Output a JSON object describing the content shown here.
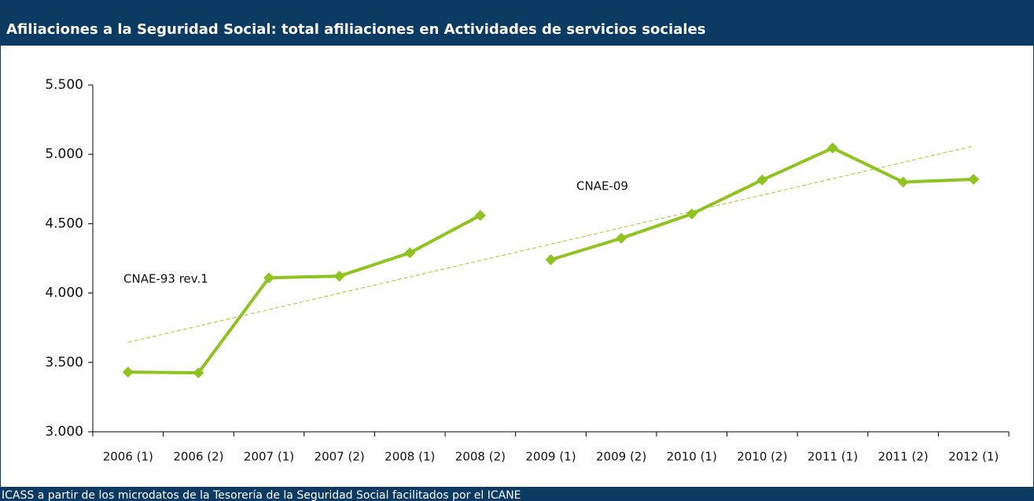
{
  "chart_data": {
    "type": "line",
    "title": "Afiliaciones a la Seguridad Social: total afiliaciones en Actividades de servicios sociales",
    "source": "ICASS a partir de los microdatos de la Tesorería de la Seguridad Social facilitados por el ICANE",
    "categories": [
      "2006 (1)",
      "2006 (2)",
      "2007 (1)",
      "2007 (2)",
      "2008 (1)",
      "2008 (2)",
      "2009 (1)",
      "2009 (2)",
      "2010 (1)",
      "2010 (2)",
      "2011 (1)",
      "2011 (2)",
      "2012 (1)"
    ],
    "series": [
      {
        "color": "#8fc31f",
        "values": [
          3430,
          3425,
          4110,
          4122,
          4290,
          4560,
          null,
          null,
          null,
          null,
          null,
          null,
          null
        ]
      },
      {
        "color": "#8fc31f",
        "values": [
          null,
          null,
          null,
          null,
          null,
          null,
          4240,
          4395,
          4570,
          4815,
          5045,
          4800,
          4820
        ]
      }
    ],
    "trendline": {
      "color": "#a8c820",
      "start": 3645,
      "end": 5060
    },
    "annotations": [
      "CNAE-93 rev.1",
      "CNAE-09"
    ],
    "ylim": [
      3000,
      5500
    ],
    "yticks": [
      {
        "value": 3000,
        "label": "3.000"
      },
      {
        "value": 3500,
        "label": "3.500"
      },
      {
        "value": 4000,
        "label": "4.000"
      },
      {
        "value": 4500,
        "label": "4.500"
      },
      {
        "value": 5000,
        "label": "5.000"
      },
      {
        "value": 5500,
        "label": "5.500"
      }
    ]
  }
}
